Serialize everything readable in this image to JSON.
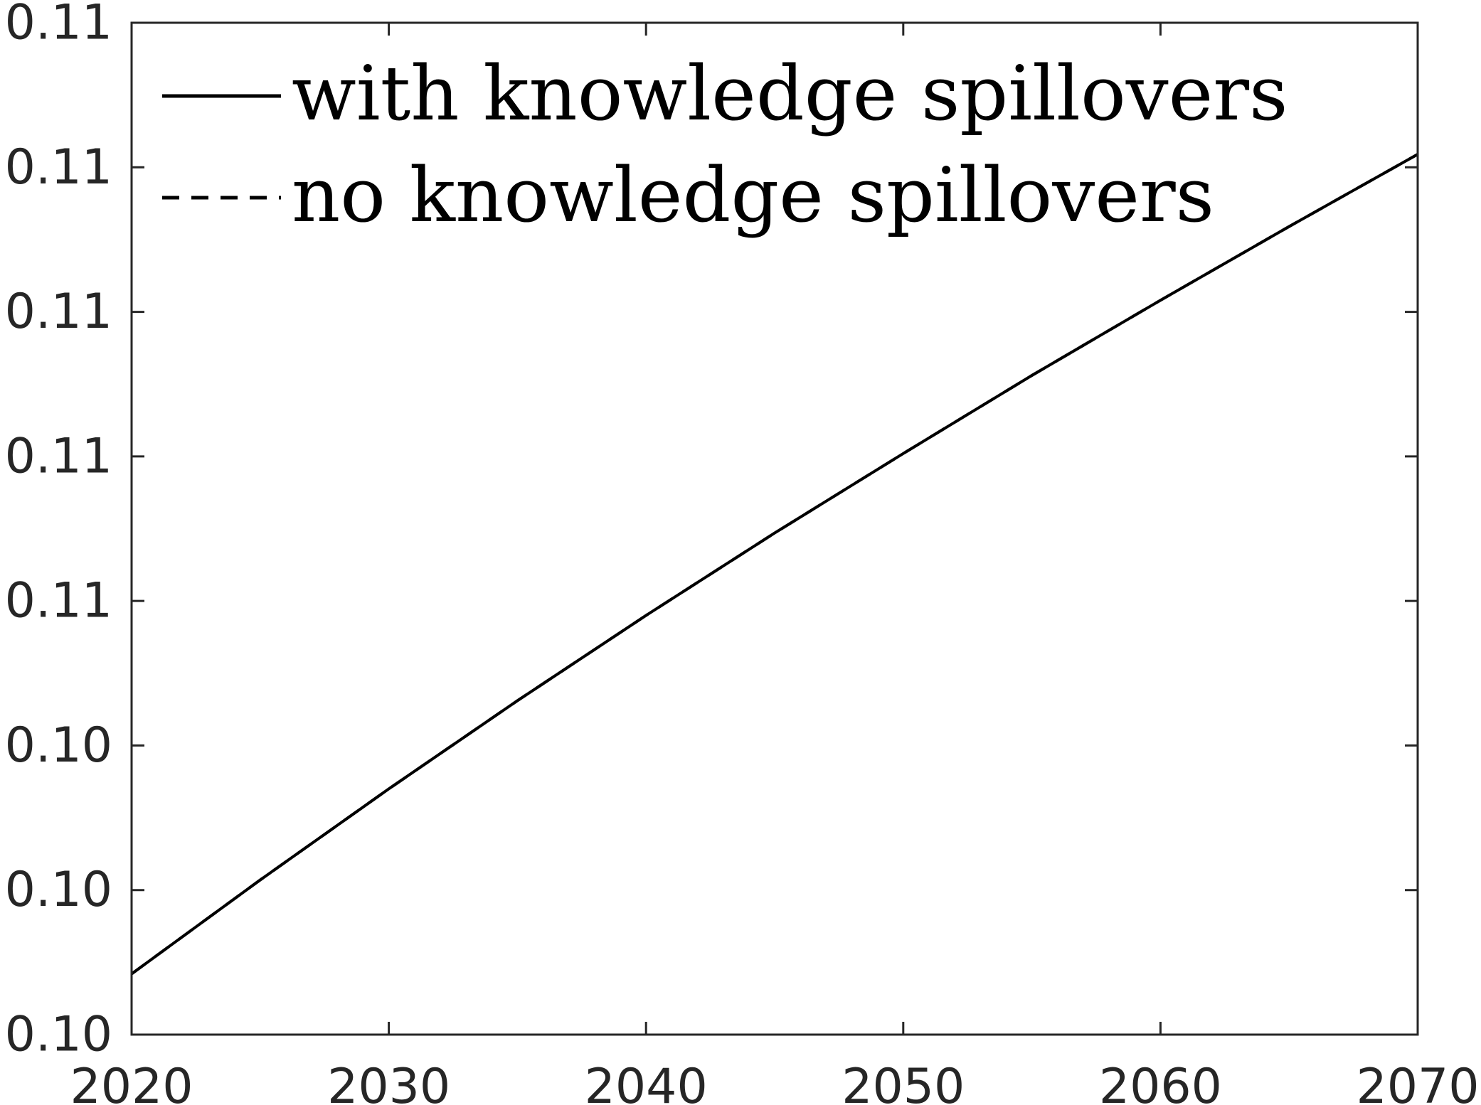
{
  "chart_data": {
    "type": "line",
    "title": "",
    "xlabel": "",
    "ylabel": "",
    "xlim": [
      2020,
      2070
    ],
    "ylim": [
      0,
      7
    ],
    "x_ticks": [
      {
        "value": 2020,
        "label": "2020"
      },
      {
        "value": 2030,
        "label": "2030"
      },
      {
        "value": 2040,
        "label": "2040"
      },
      {
        "value": 2050,
        "label": "2050"
      },
      {
        "value": 2060,
        "label": "2060"
      },
      {
        "value": 2070,
        "label": "2070"
      }
    ],
    "y_ticks": [
      {
        "value": 0,
        "label": "0.10"
      },
      {
        "value": 1,
        "label": "0.10"
      },
      {
        "value": 2,
        "label": "0.10"
      },
      {
        "value": 3,
        "label": "0.11"
      },
      {
        "value": 4,
        "label": "0.11"
      },
      {
        "value": 5,
        "label": "0.11"
      },
      {
        "value": 6,
        "label": "0.11"
      },
      {
        "value": 7,
        "label": "0.11"
      }
    ],
    "series": [
      {
        "name": "with knowledge spillovers",
        "style": "solid",
        "color": "#000000",
        "x": [
          2020,
          2025,
          2030,
          2035,
          2040,
          2045,
          2050,
          2055,
          2060,
          2065,
          2070
        ],
        "y": [
          0.42,
          1.07,
          1.7,
          2.31,
          2.9,
          3.47,
          4.02,
          4.56,
          5.08,
          5.59,
          6.09
        ]
      },
      {
        "name": "no knowledge spillovers",
        "style": "dashed",
        "color": "#000000",
        "x": [
          2020,
          2025,
          2030,
          2035,
          2040,
          2045,
          2050,
          2055,
          2060,
          2065,
          2070
        ],
        "y": [
          0.42,
          1.07,
          1.7,
          2.31,
          2.9,
          3.47,
          4.02,
          4.56,
          5.08,
          5.59,
          6.09
        ]
      }
    ],
    "legend": {
      "placement": "top-left",
      "box": false
    },
    "grid": false
  }
}
